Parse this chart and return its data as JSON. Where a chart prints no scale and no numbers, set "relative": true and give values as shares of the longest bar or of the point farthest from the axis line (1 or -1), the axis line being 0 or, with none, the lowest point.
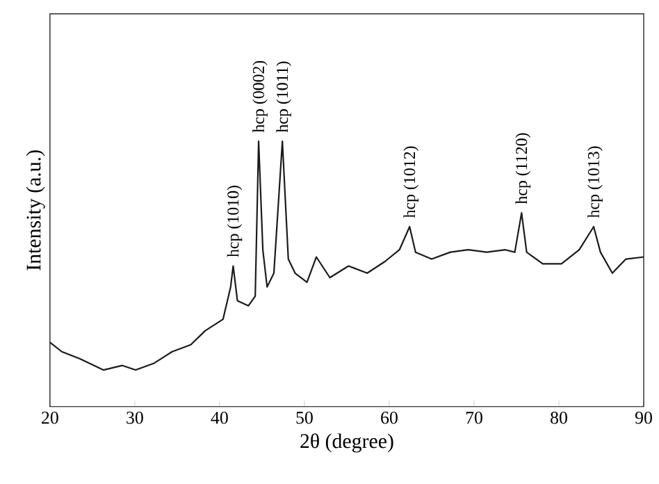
{
  "chart_data": {
    "type": "line",
    "relative": true,
    "xlabel": "2θ (degree)",
    "ylabel": "Intensity (a.u.)",
    "xlim": [
      20,
      90
    ],
    "xticks": [
      20,
      30,
      40,
      50,
      60,
      70,
      80,
      90
    ],
    "tick_labels": "x",
    "grid": false,
    "marker": "none",
    "line_style": "solid",
    "x": [
      20,
      21.4,
      23.5,
      26.3,
      28.5,
      30.1,
      32.3,
      34.4,
      36.6,
      38.3,
      40.4,
      41.3,
      41.6,
      42.1,
      43.4,
      44.2,
      44.6,
      45.1,
      45.6,
      46.4,
      47.4,
      48.1,
      48.9,
      50.3,
      51.4,
      53.0,
      55.2,
      57.4,
      59.5,
      61.2,
      62.4,
      63.1,
      65.0,
      67.2,
      69.3,
      71.5,
      73.7,
      74.8,
      75.6,
      76.2,
      78.1,
      80.3,
      82.4,
      84.1,
      84.9,
      86.3,
      87.9,
      90
    ],
    "series": [
      {
        "color": "#1a1a1a",
        "values": [
          0.242,
          0.207,
          0.181,
          0.138,
          0.155,
          0.138,
          0.164,
          0.207,
          0.233,
          0.286,
          0.329,
          0.451,
          0.53,
          0.399,
          0.38,
          0.416,
          1.0,
          0.59,
          0.451,
          0.503,
          1.0,
          0.556,
          0.503,
          0.469,
          0.564,
          0.486,
          0.53,
          0.503,
          0.547,
          0.591,
          0.678,
          0.582,
          0.556,
          0.582,
          0.591,
          0.582,
          0.591,
          0.582,
          0.73,
          0.582,
          0.538,
          0.538,
          0.591,
          0.678,
          0.582,
          0.503,
          0.556,
          0.564
        ]
      }
    ],
    "annotations": [
      {
        "text": "hcp (1010)",
        "x": 41.6,
        "y": 0.53
      },
      {
        "text": "hcp (0002)",
        "x": 44.6,
        "y": 1.0
      },
      {
        "text": "hcp (1011)",
        "x": 47.4,
        "y": 1.0
      },
      {
        "text": "hcp (1012)",
        "x": 62.4,
        "y": 0.678
      },
      {
        "text": "hcp (1120)",
        "x": 75.6,
        "y": 0.73
      },
      {
        "text": "hcp (1013)",
        "x": 84.1,
        "y": 0.678
      }
    ]
  }
}
